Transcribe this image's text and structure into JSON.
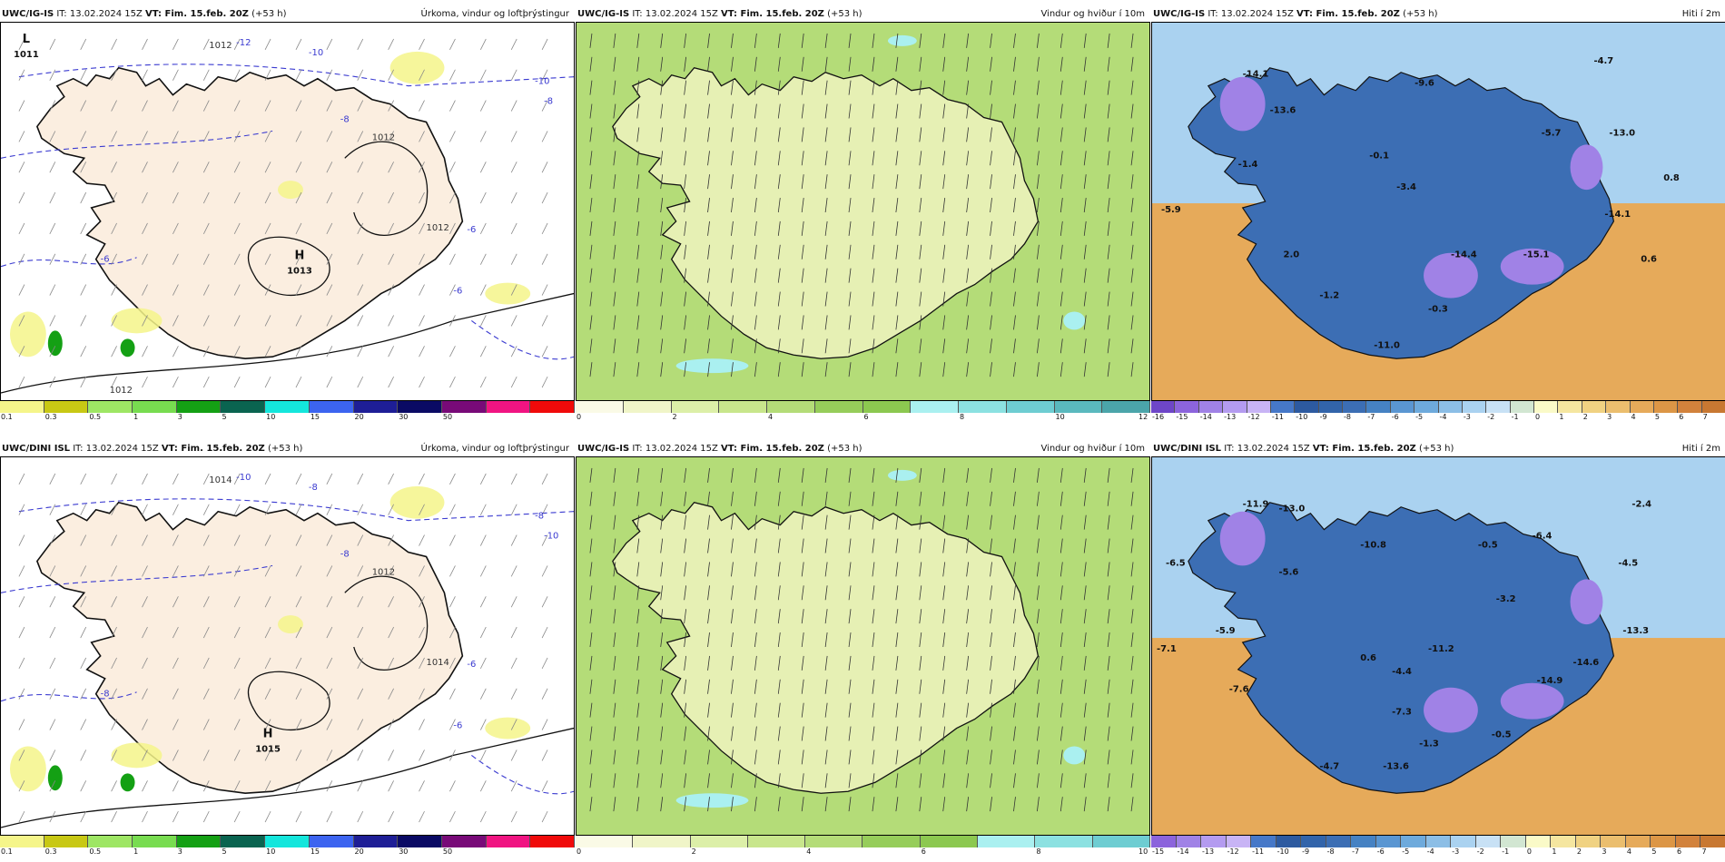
{
  "rows": [
    {
      "panels": [
        {
          "model": "UWC/IG-IS",
          "it_label": "IT: 13.02.2024 15Z",
          "vt_label": "VT: Fim. 15.feb. 20Z",
          "lead": "(+53 h)",
          "title": "Úrkoma, vindur og loftþrýstingur",
          "type": "precip",
          "pressure_labels": [
            {
              "text": "L"
            },
            {
              "text": "1011"
            },
            {
              "text": "H"
            },
            {
              "text": "1013"
            }
          ],
          "isobar_labels": [
            "1012",
            "1012",
            "1012",
            "1012"
          ],
          "temp_contour_labels": [
            "-12",
            "-10",
            "-10",
            "-8",
            "-8",
            "-6",
            "-6",
            "-6"
          ],
          "colorbar": {
            "colors": [
              "#f5f58a",
              "#c8c814",
              "#9ee664",
              "#78dc50",
              "#14a014",
              "#0a6450",
              "#14e6dc",
              "#3c64f0",
              "#1e1e96",
              "#0a0a64",
              "#780a78",
              "#f01482",
              "#f00a0a"
            ],
            "ticks": [
              "0.1",
              "0.3",
              "0.5",
              "1",
              "3",
              "5",
              "10",
              "15",
              "20",
              "30",
              "50"
            ]
          }
        },
        {
          "model": "UWC/IG-IS",
          "it_label": "IT: 13.02.2024 15Z",
          "vt_label": "VT: Fim. 15.feb. 20Z",
          "lead": "(+53 h)",
          "title": "Vindur og hviður í 10m",
          "type": "wind",
          "colorbar": {
            "colors": [
              "#fafae6",
              "#f0f5c8",
              "#dcefa8",
              "#c8e68c",
              "#b4dc78",
              "#96cd5a",
              "#8cc850",
              "#aaf0f0",
              "#8ce1e1",
              "#6ecdd2",
              "#5ab9be",
              "#4ba5aa"
            ],
            "ticks": [
              "0",
              "2",
              "4",
              "6",
              "8",
              "10",
              "12"
            ]
          }
        },
        {
          "model": "UWC/IG-IS",
          "it_label": "IT: 13.02.2024 15Z",
          "vt_label": "VT: Fim. 15.feb. 20Z",
          "lead": "(+53 h)",
          "title": "Hiti í 2m",
          "type": "temp",
          "temp_labels": [
            "-14.1",
            "-13.6",
            "-9.6",
            "-4.7",
            "-5.7",
            "-13.0",
            "-1.4",
            "-0.1",
            "-3.4",
            "-14.1",
            "0.8",
            "-5.9",
            "2.0",
            "-14.4",
            "-15.1",
            "0.6",
            "-1.2",
            "-0.3",
            "-11.0"
          ],
          "colorbar": {
            "colors": [
              "#6e46c8",
              "#8c64dc",
              "#a082e6",
              "#b49bf0",
              "#c8b4f5",
              "#4678c8",
              "#2d5aa0",
              "#3264aa",
              "#3c6eb4",
              "#4682c3",
              "#5a96d2",
              "#6eaadc",
              "#8cbee6",
              "#aad2f0",
              "#c8e1f5",
              "#d2e6d2",
              "#fafac8",
              "#f5e6a0",
              "#f0d282",
              "#ebbe6e",
              "#e6aa5a",
              "#dc9646",
              "#d2823c",
              "#c87832"
            ],
            "ticks": [
              "-16",
              "-15",
              "-14",
              "-13",
              "-12",
              "-11",
              "-10",
              "-9",
              "-8",
              "-7",
              "-6",
              "-5",
              "-4",
              "-3",
              "-2",
              "-1",
              "0",
              "1",
              "2",
              "3",
              "4",
              "5",
              "6",
              "7"
            ]
          }
        }
      ]
    },
    {
      "panels": [
        {
          "model": "UWC/DINI ISL",
          "it_label": "IT: 13.02.2024 15Z",
          "vt_label": "VT: Fim. 15.feb. 20Z",
          "lead": "(+53 h)",
          "title": "Úrkoma, vindur og loftþrýstingur",
          "type": "precip",
          "pressure_labels": [
            {
              "text": "H"
            },
            {
              "text": "1015"
            }
          ],
          "isobar_labels": [
            "1014",
            "1014",
            "1012"
          ],
          "temp_contour_labels": [
            "-10",
            "-8",
            "-8",
            "-10",
            "-8",
            "-8",
            "-6",
            "-6"
          ],
          "colorbar": {
            "colors": [
              "#f5f58a",
              "#c8c814",
              "#9ee664",
              "#78dc50",
              "#14a014",
              "#0a6450",
              "#14e6dc",
              "#3c64f0",
              "#1e1e96",
              "#0a0a64",
              "#780a78",
              "#f01482",
              "#f00a0a"
            ],
            "ticks": [
              "0.1",
              "0.3",
              "0.5",
              "1",
              "3",
              "5",
              "10",
              "15",
              "20",
              "30",
              "50"
            ]
          }
        },
        {
          "model": "UWC/IG-IS",
          "it_label": "IT: 13.02.2024 15Z",
          "vt_label": "VT: Fim. 15.feb. 20Z",
          "lead": "(+53 h)",
          "title": "Vindur og hviður í 10m",
          "type": "wind",
          "colorbar": {
            "colors": [
              "#fafae6",
              "#f0f5c8",
              "#dcefa8",
              "#c8e68c",
              "#b4dc78",
              "#96cd5a",
              "#8cc850",
              "#aaf0f0",
              "#8ce1e1",
              "#6ecdd2"
            ],
            "ticks": [
              "0",
              "2",
              "4",
              "6",
              "8",
              "10"
            ]
          }
        },
        {
          "model": "UWC/DINI ISL",
          "it_label": "IT: 13.02.2024 15Z",
          "vt_label": "VT: Fim. 15.feb. 20Z",
          "lead": "(+53 h)",
          "title": "Hiti í 2m",
          "type": "temp",
          "temp_labels": [
            "-11.9",
            "-13.0",
            "-2.4",
            "-6.5",
            "-10.8",
            "-0.5",
            "-6.4",
            "-4.5",
            "-5.6",
            "-3.2",
            "-5.9",
            "-7.1",
            "0.6",
            "-11.2",
            "-14.6",
            "-13.3",
            "-4.4",
            "-14.9",
            "-7.6",
            "-7.3",
            "-1.3",
            "-0.5",
            "-4.7",
            "-13.6"
          ],
          "colorbar": {
            "colors": [
              "#8c64dc",
              "#a082e6",
              "#b49bf0",
              "#c8b4f5",
              "#4678c8",
              "#2d5aa0",
              "#3264aa",
              "#3c6eb4",
              "#4682c3",
              "#5a96d2",
              "#6eaadc",
              "#8cbee6",
              "#aad2f0",
              "#c8e1f5",
              "#d2e6d2",
              "#fafac8",
              "#f5e6a0",
              "#f0d282",
              "#ebbe6e",
              "#e6aa5a",
              "#dc9646",
              "#d2823c",
              "#c87832"
            ],
            "ticks": [
              "-15",
              "-14",
              "-13",
              "-12",
              "-11",
              "-10",
              "-9",
              "-8",
              "-7",
              "-6",
              "-5",
              "-4",
              "-3",
              "-2",
              "-1",
              "0",
              "1",
              "2",
              "3",
              "4",
              "5",
              "6",
              "7"
            ]
          }
        }
      ]
    }
  ]
}
